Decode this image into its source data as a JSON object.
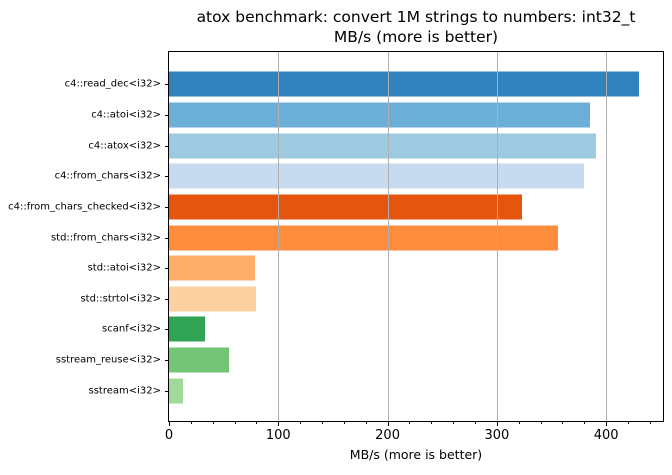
{
  "title": {
    "line1": "atox benchmark: convert 1M strings to numbers: int32_t",
    "line2": "MB/s (more is better)"
  },
  "chart_data": {
    "type": "bar",
    "orientation": "horizontal",
    "title": "atox benchmark: convert 1M strings to numbers: int32_t",
    "subtitle": "MB/s (more is better)",
    "xlabel": "MB/s (more is better)",
    "categories": [
      "c4::read_dec<i32>",
      "c4::atoi<i32>",
      "c4::atox<i32>",
      "c4::from_chars<i32>",
      "c4::from_chars_checked<i32>",
      "std::from_chars<i32>",
      "std::atoi<i32>",
      "std::strtol<i32>",
      "scanf<i32>",
      "sstream_reuse<i32>",
      "sstream<i32>"
    ],
    "values": [
      430,
      385,
      391,
      380,
      323,
      356,
      79,
      80,
      33,
      55,
      13
    ],
    "colors": [
      "#3182bd",
      "#6baed6",
      "#9ecae1",
      "#c6dbef",
      "#e6550d",
      "#fd8d3c",
      "#fdae6b",
      "#fdd0a2",
      "#31a354",
      "#74c476",
      "#a1d99b"
    ],
    "xlim": [
      0,
      452
    ],
    "x_major_ticks": [
      0,
      100,
      200,
      300,
      400
    ],
    "x_minor_step": 20,
    "grid": {
      "axis": "x",
      "color": "#b0b0b0",
      "above_bars": true
    },
    "legend": "none",
    "bar_height_fraction": 0.81
  }
}
